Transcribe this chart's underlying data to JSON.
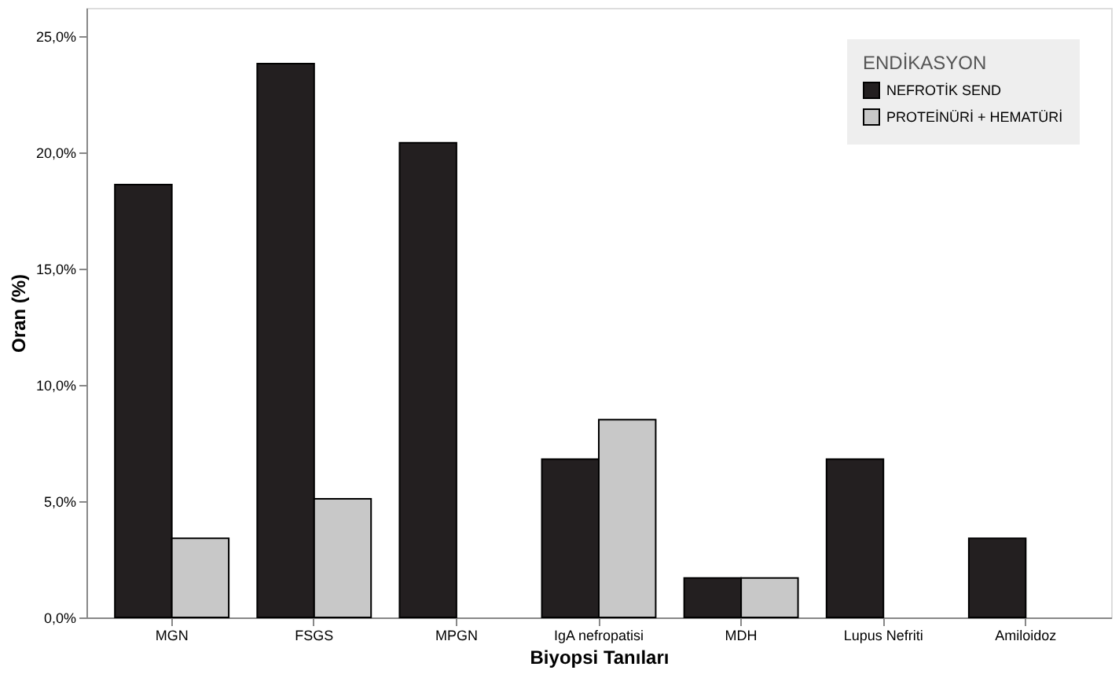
{
  "chart_data": {
    "type": "bar",
    "xlabel": "Biyopsi Tanıları",
    "ylabel": "Oran (%)",
    "legend_title": "ENDİKASYON",
    "legend": "top right",
    "categories": [
      "MGN",
      "FSGS",
      "MPGN",
      "IgA nefropatisi",
      "MDH",
      "Lupus Nefriti",
      "Amiloidoz"
    ],
    "series": [
      {
        "name": "NEFROTİK SEND",
        "color": "#231f20",
        "values": [
          18.6,
          23.8,
          20.4,
          6.8,
          1.7,
          6.8,
          3.4
        ]
      },
      {
        "name": "PROTEİNÜRİ + HEMATÜRİ",
        "color": "#c8c8c8",
        "values": [
          3.4,
          5.1,
          0,
          8.5,
          1.7,
          0,
          0
        ]
      }
    ],
    "ylim": [
      0,
      26.2
    ],
    "yticks": [
      {
        "value": 0,
        "label": "0,0%"
      },
      {
        "value": 5,
        "label": "5,0%"
      },
      {
        "value": 10,
        "label": "10,0%"
      },
      {
        "value": 15,
        "label": "15,0%"
      },
      {
        "value": 20,
        "label": "20,0%"
      },
      {
        "value": 25,
        "label": "25,0%"
      }
    ],
    "grid": false
  }
}
